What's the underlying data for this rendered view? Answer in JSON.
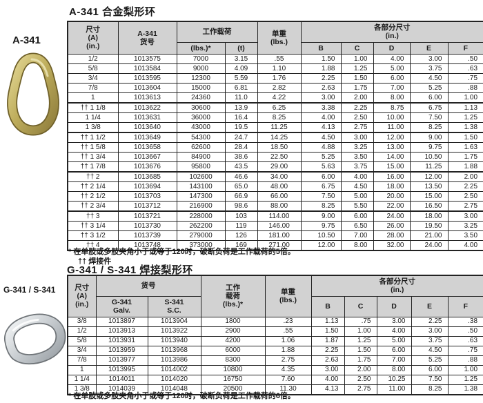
{
  "colors": {
    "header_bg": "#d2d2d2",
    "border": "#222222",
    "gold_ring": "#bfae5d",
    "silver_ring": "#b9bec2"
  },
  "table1": {
    "title": "A-341  合金梨形环",
    "side_label": "A-341",
    "ring_icon": "gold-pear-ring",
    "headers": {
      "size": "尺寸\n(A)\n(in.)",
      "code": "A-341\n货号",
      "wll": "工作载荷",
      "wll_lbs": "(lbs.)*",
      "wll_t": "(t)",
      "weight": "单重\n(lbs.)",
      "dims": "各部分尺寸\n(in.)",
      "b": "B",
      "c": "C",
      "d": "D",
      "e": "E",
      "f": "F"
    },
    "rows": [
      [
        "1/2",
        "1013575",
        "7000",
        "3.15",
        ".55",
        "1.50",
        "1.00",
        "4.00",
        "3.00",
        ".50"
      ],
      [
        "5/8",
        "1013584",
        "9000",
        "4.09",
        "1.10",
        "1.88",
        "1.25",
        "5.00",
        "3.75",
        ".63"
      ],
      [
        "3/4",
        "1013595",
        "12300",
        "5.59",
        "1.76",
        "2.25",
        "1.50",
        "6.00",
        "4.50",
        ".75"
      ],
      [
        "7/8",
        "1013604",
        "15000",
        "6.81",
        "2.82",
        "2.63",
        "1.75",
        "7.00",
        "5.25",
        ".88"
      ],
      [
        "1",
        "1013613",
        "24360",
        "11.0",
        "4.22",
        "3.00",
        "2.00",
        "8.00",
        "6.00",
        "1.00"
      ],
      [
        "†† 1 1/8",
        "1013622",
        "30600",
        "13.9",
        "6.25",
        "3.38",
        "2.25",
        "8.75",
        "6.75",
        "1.13"
      ],
      [
        "1 1/4",
        "1013631",
        "36000",
        "16.4",
        "8.25",
        "4.00",
        "2.50",
        "10.00",
        "7.50",
        "1.25"
      ],
      [
        "1 3/8",
        "1013640",
        "43000",
        "19.5",
        "11.25",
        "4.13",
        "2.75",
        "11.00",
        "8.25",
        "1.38"
      ],
      [
        "†† 1 1/2",
        "1013649",
        "54300",
        "24.7",
        "14.25",
        "4.50",
        "3.00",
        "12.00",
        "9.00",
        "1.50"
      ],
      [
        "†† 1 5/8",
        "1013658",
        "62600",
        "28.4",
        "18.50",
        "4.88",
        "3.25",
        "13.00",
        "9.75",
        "1.63"
      ],
      [
        "†† 1 3/4",
        "1013667",
        "84900",
        "38.6",
        "22.50",
        "5.25",
        "3.50",
        "14.00",
        "10.50",
        "1.75"
      ],
      [
        "†† 1 7/8",
        "1013676",
        "95800",
        "43.5",
        "29.00",
        "5.63",
        "3.75",
        "15.00",
        "11.25",
        "1.88"
      ],
      [
        "†† 2",
        "1013685",
        "102600",
        "46.6",
        "34.00",
        "6.00",
        "4.00",
        "16.00",
        "12.00",
        "2.00"
      ],
      [
        "†† 2 1/4",
        "1013694",
        "143100",
        "65.0",
        "48.00",
        "6.75",
        "4.50",
        "18.00",
        "13.50",
        "2.25"
      ],
      [
        "†† 2 1/2",
        "1013703",
        "147300",
        "66.9",
        "66.00",
        "7.50",
        "5.00",
        "20.00",
        "15.00",
        "2.50"
      ],
      [
        "†† 2 3/4",
        "1013712",
        "216900",
        "98.6",
        "88.00",
        "8.25",
        "5.50",
        "22.00",
        "16.50",
        "2.75"
      ],
      [
        "†† 3",
        "1013721",
        "228000",
        "103",
        "114.00",
        "9.00",
        "6.00",
        "24.00",
        "18.00",
        "3.00"
      ],
      [
        "†† 3 1/4",
        "1013730",
        "262200",
        "119",
        "146.00",
        "9.75",
        "6.50",
        "26.00",
        "19.50",
        "3.25"
      ],
      [
        "†† 3 1/2",
        "1013739",
        "279000",
        "126",
        "181.00",
        "10.50",
        "7.00",
        "28.00",
        "21.00",
        "3.50"
      ],
      [
        "†† 4",
        "1013748",
        "373000",
        "169",
        "271.00",
        "12.00",
        "8.00",
        "32.00",
        "24.00",
        "4.00"
      ]
    ],
    "footnote1": "* 在单肢或多肢夹角小于或等于120时，破断负荷是工作载荷的5倍。",
    "footnote2": "†† 焊接件"
  },
  "table2": {
    "title": "G-341 / S-341  焊接梨形环",
    "side_label": "G-341 /  S-341",
    "ring_icon": "silver-pear-ring",
    "headers": {
      "size": "尺寸\n(A)\n(in.)",
      "code": "货号",
      "code_g": "G-341\nGalv.",
      "code_s": "S-341\nS.C.",
      "wll": "工作\n载荷\n(lbs.)*",
      "weight": "单重\n(lbs.)",
      "dims": "各部分尺寸\n(in.)",
      "b": "B",
      "c": "C",
      "d": "D",
      "e": "E",
      "f": "F"
    },
    "rows": [
      [
        "3/8",
        "1013897",
        "1013904",
        "1800",
        ".23",
        "1.13",
        ".75",
        "3.00",
        "2.25",
        ".38"
      ],
      [
        "1/2",
        "1013913",
        "1013922",
        "2900",
        ".55",
        "1.50",
        "1.00",
        "4.00",
        "3.00",
        ".50"
      ],
      [
        "5/8",
        "1013931",
        "1013940",
        "4200",
        "1.06",
        "1.87",
        "1.25",
        "5.00",
        "3.75",
        ".63"
      ],
      [
        "3/4",
        "1013959",
        "1013968",
        "6000",
        "1.88",
        "2.25",
        "1.50",
        "6.00",
        "4.50",
        ".75"
      ],
      [
        "7/8",
        "1013977",
        "1013986",
        "8300",
        "2.75",
        "2.63",
        "1.75",
        "7.00",
        "5.25",
        ".88"
      ],
      [
        "1",
        "1013995",
        "1014002",
        "10800",
        "4.35",
        "3.00",
        "2.00",
        "8.00",
        "6.00",
        "1.00"
      ],
      [
        "1 1/4",
        "1014011",
        "1014020",
        "16750",
        "7.60",
        "4.00",
        "2.50",
        "10.25",
        "7.50",
        "1.25"
      ],
      [
        "1 3/8",
        "1014039",
        "1014048",
        "20500",
        "11.30",
        "4.13",
        "2.75",
        "11.00",
        "8.25",
        "1.38"
      ]
    ],
    "footnote1": "* 在单肢或多肢夹角小于或等于120时，破断负荷是工作载荷的6倍。"
  }
}
